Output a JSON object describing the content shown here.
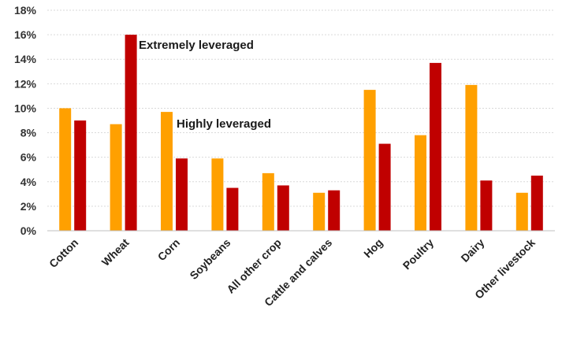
{
  "chart_data": {
    "type": "bar",
    "categories": [
      "Cotton",
      "Wheat",
      "Corn",
      "Soybeans",
      "All other crop",
      "Cattle and calves",
      "Hog",
      "Poultry",
      "Dairy",
      "Other livestock"
    ],
    "series": [
      {
        "color": "#FFA000",
        "values": [
          10.0,
          8.7,
          9.7,
          5.9,
          4.7,
          3.1,
          11.5,
          7.8,
          11.9,
          3.1
        ]
      },
      {
        "color": "#C00000",
        "values": [
          9.0,
          16.0,
          5.9,
          3.5,
          3.7,
          3.3,
          7.1,
          13.7,
          4.1,
          4.5
        ]
      }
    ],
    "ylim": [
      0,
      18
    ],
    "yticks": [
      "0%",
      "2%",
      "4%",
      "6%",
      "8%",
      "10%",
      "12%",
      "14%",
      "16%",
      "18%"
    ],
    "grid": true,
    "annotations": [
      {
        "text": "Extremely leveraged"
      },
      {
        "text": "Highly leveraged"
      }
    ]
  }
}
